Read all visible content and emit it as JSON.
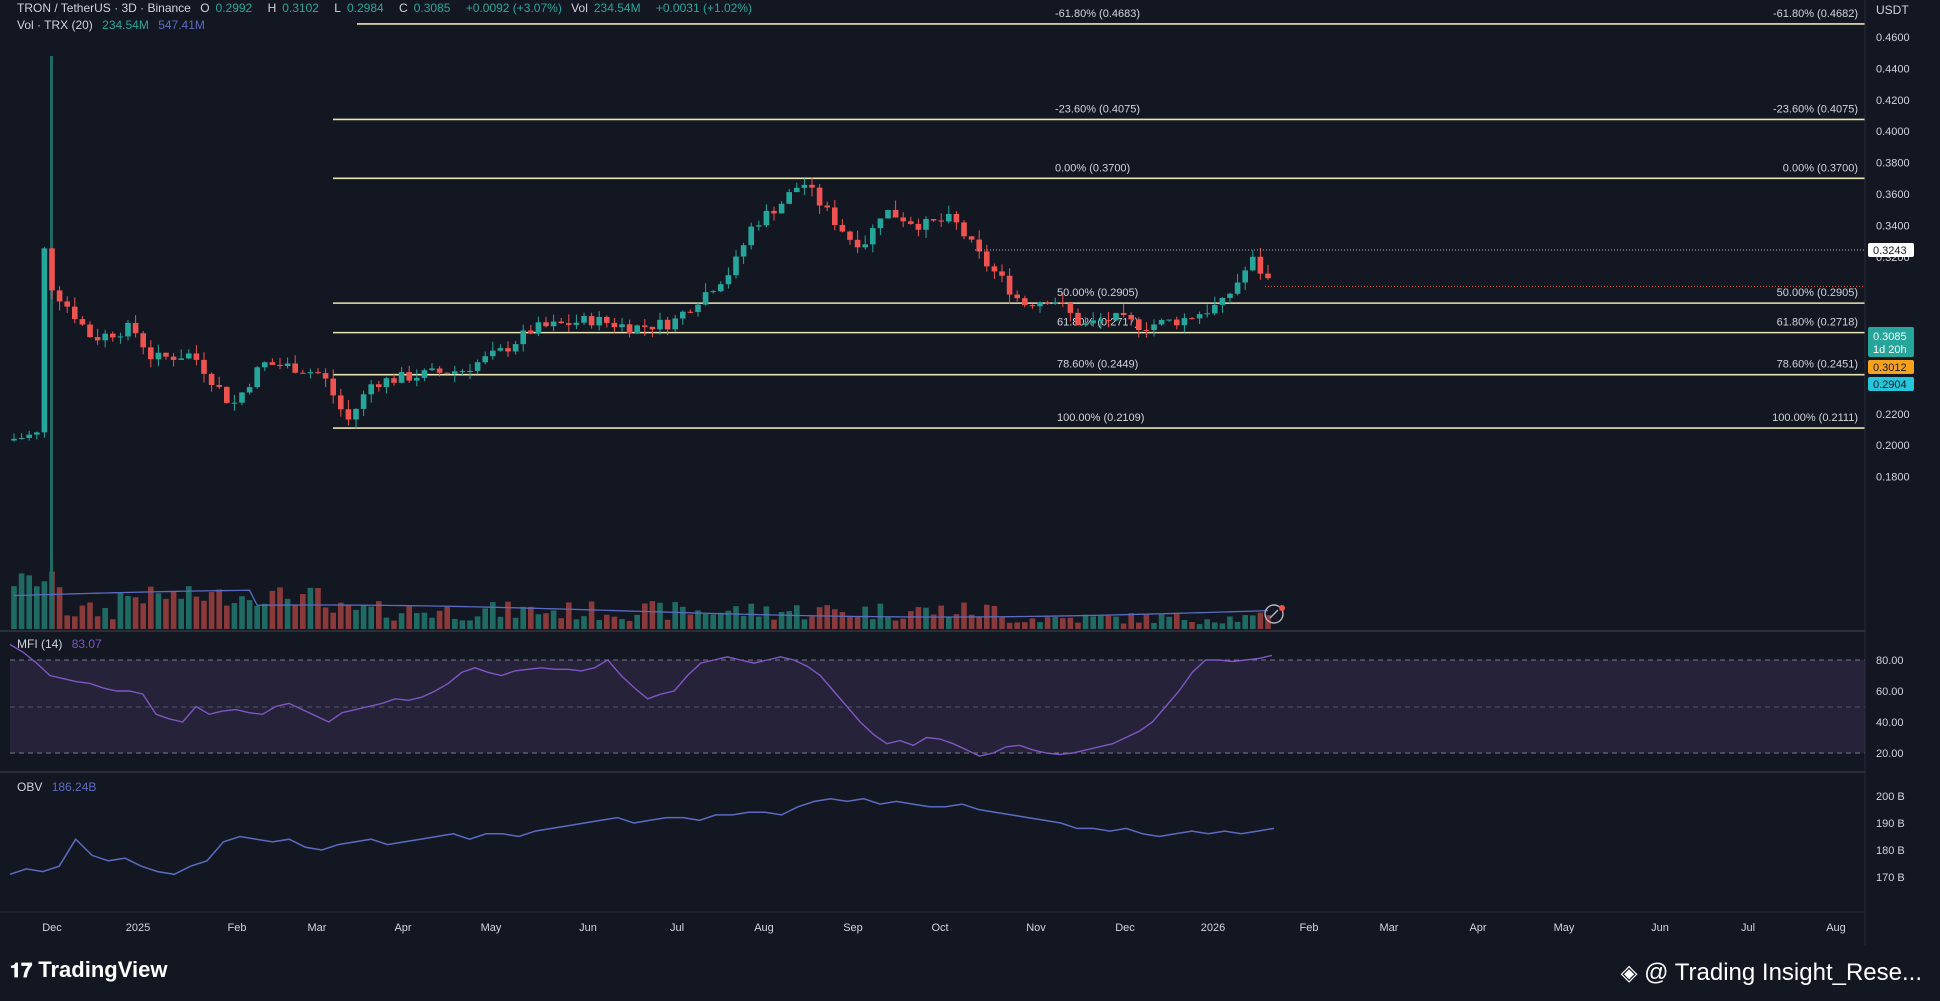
{
  "symbol": {
    "title": "TRON / TetherUS · 3D · Binance",
    "open_label": "O",
    "open": "0.2992",
    "high_label": "H",
    "high": "0.3102",
    "low_label": "L",
    "low": "0.2984",
    "close_label": "C",
    "close": "0.3085",
    "change": "+0.0092 (+3.07%)",
    "vol_label": "Vol",
    "vol": "234.54M",
    "vol_change": "+0.0031 (+1.02%)"
  },
  "volume_legend": {
    "name": "Vol · TRX (20)",
    "value1": "234.54M",
    "value2": "547.41M"
  },
  "currency": "USDT",
  "price_axis": [
    "0.4600",
    "0.4400",
    "0.4200",
    "0.4000",
    "0.3800",
    "0.3600",
    "0.3400",
    "0.3200",
    "0.2600",
    "0.2400",
    "0.2200",
    "0.2000",
    "0.1800"
  ],
  "price_tags": {
    "level": "0.3243",
    "last": "0.3085",
    "countdown": "1d 20h",
    "orange": "0.3012",
    "blue": "0.2904"
  },
  "fib_levels": [
    {
      "left": "-61.80% (0.4683)",
      "right": "-61.80% (0.4682)",
      "price": 0.4683
    },
    {
      "left": "-23.60% (0.4075)",
      "right": "-23.60% (0.4075)",
      "price": 0.4075
    },
    {
      "left": "0.00% (0.3700)",
      "right": "0.00% (0.3700)",
      "price": 0.37
    },
    {
      "left": "50.00% (0.2905)",
      "right": "50.00% (0.2905)",
      "price": 0.2905
    },
    {
      "left": "61.80% (0.2717)",
      "right": "61.80% (0.2718)",
      "price": 0.2717
    },
    {
      "left": "78.60% (0.2449)",
      "right": "78.60% (0.2451)",
      "price": 0.2449
    },
    {
      "left": "100.00% (0.2109)",
      "right": "100.00% (0.2111)",
      "price": 0.2109
    }
  ],
  "mfi": {
    "name": "MFI (14)",
    "value": "83.07",
    "axis": [
      "80.00",
      "60.00",
      "40.00",
      "20.00"
    ]
  },
  "obv": {
    "name": "OBV",
    "value": "186.24B",
    "axis": [
      "200 B",
      "190 B",
      "180 B",
      "170 B"
    ]
  },
  "time_axis": [
    "Dec",
    "2025",
    "Feb",
    "Mar",
    "Apr",
    "May",
    "Jun",
    "Jul",
    "Aug",
    "Sep",
    "Oct",
    "Nov",
    "Dec",
    "2026",
    "Feb",
    "Mar",
    "Apr",
    "May",
    "Jun",
    "Jul",
    "Aug"
  ],
  "footer": {
    "brand": "TradingView",
    "credit": "@ Trading Insight_Rese..."
  },
  "colors": {
    "up": "#26a69a",
    "down": "#ef5350",
    "fib": "#e8e4b4",
    "indicator": "#7e57c2",
    "obv": "#5c6bc0",
    "bg": "#131722"
  }
}
